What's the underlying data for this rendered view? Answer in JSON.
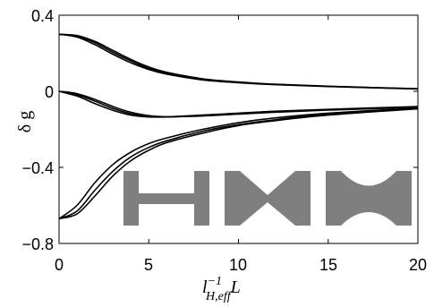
{
  "chart_data": {
    "type": "line",
    "xlim": [
      0,
      20
    ],
    "ylim": [
      -0.8,
      0.4
    ],
    "x_ticks": [
      "0",
      "5",
      "10",
      "15",
      "20"
    ],
    "y_ticks": [
      "0.4",
      "0",
      "−0.4",
      "−0.8"
    ],
    "grid": false,
    "ylabel": "δ g",
    "xlabel": {
      "base": "l",
      "superscript": "−1",
      "subscript": "H,eff",
      "suffix": "L"
    },
    "series": [
      {
        "values": [
          [
            0,
            0.3
          ],
          [
            1,
            0.285
          ],
          [
            2,
            0.245
          ],
          [
            3,
            0.195
          ],
          [
            4,
            0.15
          ],
          [
            5,
            0.115
          ],
          [
            6,
            0.09
          ],
          [
            8,
            0.06
          ],
          [
            10,
            0.045
          ],
          [
            12,
            0.035
          ],
          [
            15,
            0.025
          ],
          [
            20,
            0.012
          ]
        ]
      },
      {
        "values": [
          [
            0,
            0.3
          ],
          [
            1,
            0.29
          ],
          [
            2,
            0.255
          ],
          [
            3,
            0.205
          ],
          [
            4,
            0.16
          ],
          [
            5,
            0.12
          ],
          [
            6,
            0.095
          ],
          [
            8,
            0.063
          ],
          [
            10,
            0.047
          ],
          [
            12,
            0.036
          ],
          [
            15,
            0.026
          ],
          [
            20,
            0.013
          ]
        ]
      },
      {
        "values": [
          [
            0,
            0.3
          ],
          [
            1,
            0.293
          ],
          [
            2,
            0.262
          ],
          [
            3,
            0.215
          ],
          [
            4,
            0.168
          ],
          [
            5,
            0.128
          ],
          [
            6,
            0.1
          ],
          [
            8,
            0.066
          ],
          [
            10,
            0.049
          ],
          [
            12,
            0.037
          ],
          [
            15,
            0.027
          ],
          [
            20,
            0.013
          ]
        ]
      },
      {
        "values": [
          [
            0,
            0.0
          ],
          [
            1,
            -0.025
          ],
          [
            2,
            -0.065
          ],
          [
            3,
            -0.1
          ],
          [
            4,
            -0.125
          ],
          [
            5,
            -0.135
          ],
          [
            6,
            -0.135
          ],
          [
            8,
            -0.125
          ],
          [
            10,
            -0.115
          ],
          [
            12,
            -0.105
          ],
          [
            15,
            -0.095
          ],
          [
            20,
            -0.08
          ]
        ]
      },
      {
        "values": [
          [
            0,
            0.0
          ],
          [
            1,
            -0.018
          ],
          [
            2,
            -0.052
          ],
          [
            3,
            -0.09
          ],
          [
            4,
            -0.118
          ],
          [
            5,
            -0.132
          ],
          [
            6,
            -0.135
          ],
          [
            8,
            -0.128
          ],
          [
            10,
            -0.117
          ],
          [
            12,
            -0.107
          ],
          [
            15,
            -0.097
          ],
          [
            20,
            -0.082
          ]
        ]
      },
      {
        "values": [
          [
            0,
            0.0
          ],
          [
            1,
            -0.012
          ],
          [
            2,
            -0.043
          ],
          [
            3,
            -0.08
          ],
          [
            4,
            -0.11
          ],
          [
            5,
            -0.128
          ],
          [
            6,
            -0.134
          ],
          [
            8,
            -0.13
          ],
          [
            10,
            -0.12
          ],
          [
            12,
            -0.11
          ],
          [
            15,
            -0.099
          ],
          [
            20,
            -0.084
          ]
        ]
      },
      {
        "values": [
          [
            0,
            -0.67
          ],
          [
            1,
            -0.6
          ],
          [
            2,
            -0.48
          ],
          [
            3,
            -0.385
          ],
          [
            4,
            -0.32
          ],
          [
            5,
            -0.275
          ],
          [
            6,
            -0.245
          ],
          [
            8,
            -0.2
          ],
          [
            10,
            -0.165
          ],
          [
            12,
            -0.14
          ],
          [
            15,
            -0.115
          ],
          [
            20,
            -0.088
          ]
        ]
      },
      {
        "values": [
          [
            0,
            -0.67
          ],
          [
            1,
            -0.63
          ],
          [
            2,
            -0.52
          ],
          [
            3,
            -0.42
          ],
          [
            4,
            -0.345
          ],
          [
            5,
            -0.295
          ],
          [
            6,
            -0.26
          ],
          [
            8,
            -0.21
          ],
          [
            10,
            -0.175
          ],
          [
            12,
            -0.15
          ],
          [
            15,
            -0.12
          ],
          [
            20,
            -0.09
          ]
        ]
      },
      {
        "values": [
          [
            0,
            -0.67
          ],
          [
            1,
            -0.645
          ],
          [
            2,
            -0.55
          ],
          [
            3,
            -0.445
          ],
          [
            4,
            -0.365
          ],
          [
            5,
            -0.31
          ],
          [
            6,
            -0.27
          ],
          [
            8,
            -0.22
          ],
          [
            10,
            -0.18
          ],
          [
            12,
            -0.155
          ],
          [
            15,
            -0.125
          ],
          [
            20,
            -0.092
          ]
        ]
      }
    ],
    "inset": {
      "description_shapes": [
        "h-junction-straight",
        "h-junction-pinched",
        "h-junction-rounded"
      ],
      "fill_color": "#7f7f7f"
    }
  }
}
